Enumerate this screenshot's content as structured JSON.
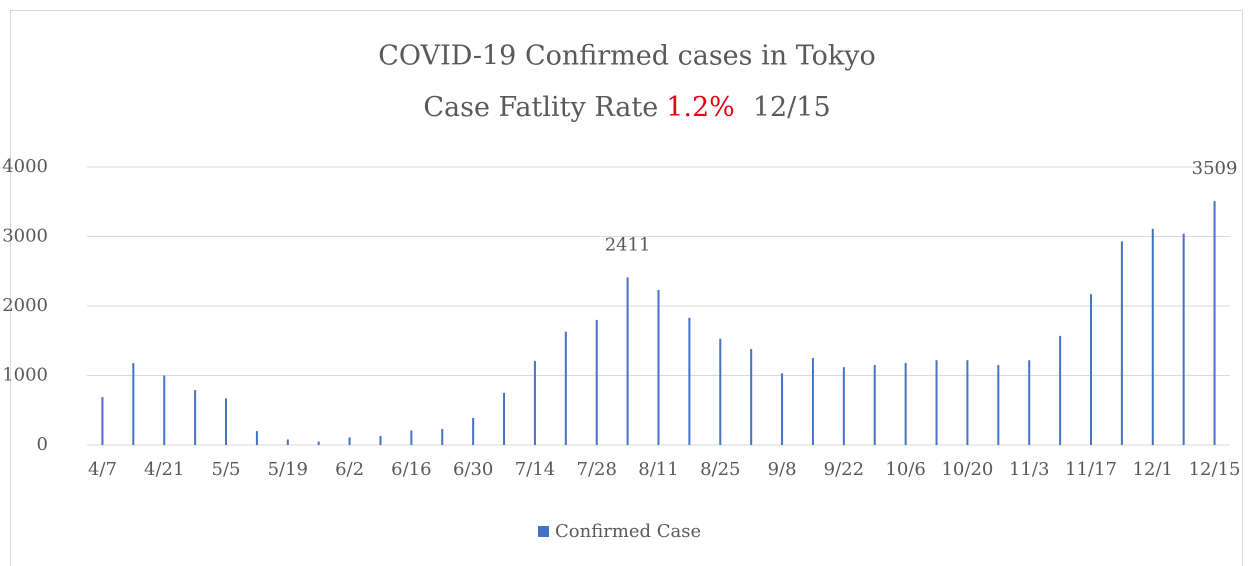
{
  "chart_data": {
    "type": "bar",
    "title": "COVID-19  Confirmed cases in Tokyo",
    "subtitle": [
      {
        "text": "Case Fatlity Rate"
      },
      {
        "text": "1.2%",
        "color": "#e60012"
      },
      {
        "text": "12/15"
      }
    ],
    "categories": [
      "4/7",
      null,
      "4/21",
      null,
      "5/5",
      null,
      "5/19",
      null,
      "6/2",
      null,
      "6/16",
      null,
      "6/30",
      null,
      "7/14",
      null,
      "7/28",
      null,
      "8/11",
      null,
      "8/25",
      null,
      "9/8",
      null,
      "9/22",
      null,
      "10/6",
      null,
      "10/20",
      null,
      "11/3",
      null,
      "11/17",
      null,
      "12/1",
      null,
      "12/15"
    ],
    "series": [
      {
        "name": "Confirmed Case",
        "color": "#4472c4",
        "values": [
          690,
          1180,
          1000,
          790,
          670,
          200,
          80,
          50,
          110,
          130,
          210,
          230,
          390,
          750,
          1210,
          1630,
          1800,
          2411,
          2230,
          1830,
          1530,
          1380,
          1030,
          1250,
          1120,
          1150,
          1180,
          1220,
          1220,
          1150,
          1220,
          1570,
          2170,
          2930,
          3110,
          3040,
          3509
        ],
        "value_labels": [
          null,
          null,
          null,
          null,
          null,
          null,
          null,
          null,
          null,
          null,
          null,
          null,
          null,
          null,
          null,
          null,
          null,
          "2411",
          null,
          null,
          null,
          null,
          null,
          null,
          null,
          null,
          null,
          null,
          null,
          null,
          null,
          null,
          null,
          null,
          null,
          null,
          "3509"
        ]
      }
    ],
    "ylim": [
      0,
      4000
    ],
    "yticks": [
      0,
      1000,
      2000,
      3000,
      4000
    ],
    "grid": true,
    "legend": "bottom"
  }
}
